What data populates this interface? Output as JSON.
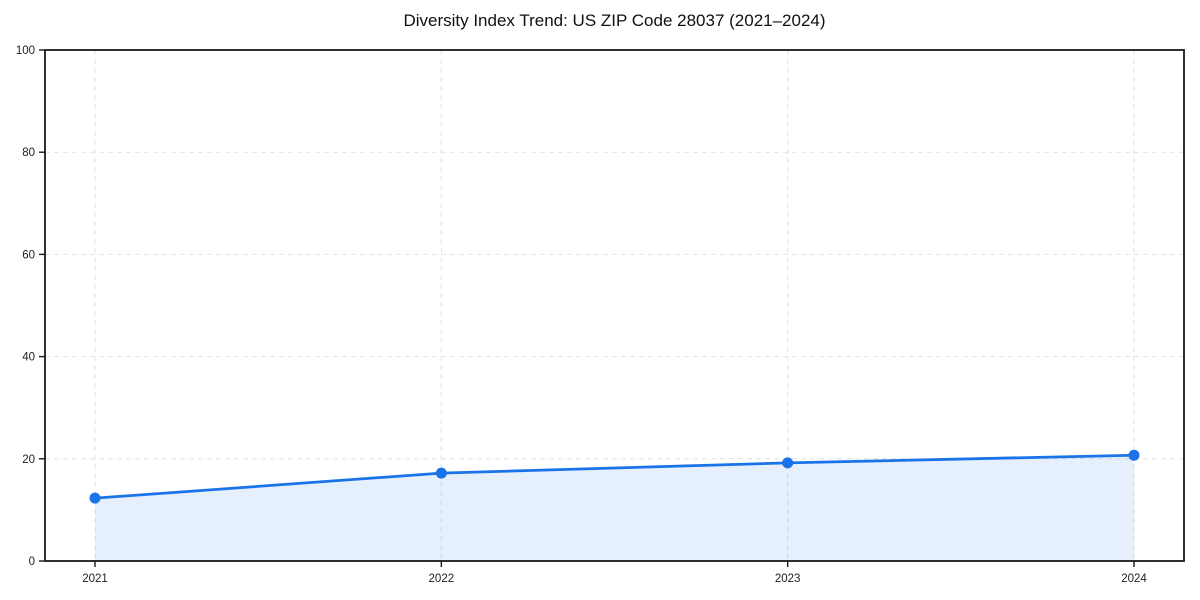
{
  "page": {
    "title": "Diversity Index Trend: US ZIP Code 28037 (2021–2024)"
  },
  "chart_data": {
    "type": "area",
    "title": "Diversity Index Trend: US ZIP Code 28037 (2021–2024)",
    "x": [
      "2021",
      "2022",
      "2023",
      "2024"
    ],
    "series": [
      {
        "name": "Diversity Index",
        "values": [
          12.3,
          17.2,
          19.2,
          20.7
        ]
      }
    ],
    "xlabel": "",
    "ylabel": "",
    "ylim": [
      0,
      100
    ],
    "yticks": [
      0,
      20,
      40,
      60,
      80,
      100
    ],
    "grid": true,
    "grid_style": "dashed",
    "legend_position": "none",
    "marker": "circle",
    "colors": {
      "line": "#1a73e8",
      "fill": "#1a73e8",
      "fill_opacity": 0.11,
      "grid": "#e2e2e2",
      "axis": "#1a1a1a",
      "tick_label": "#222222",
      "title": "#111111",
      "background": "#ffffff"
    }
  }
}
